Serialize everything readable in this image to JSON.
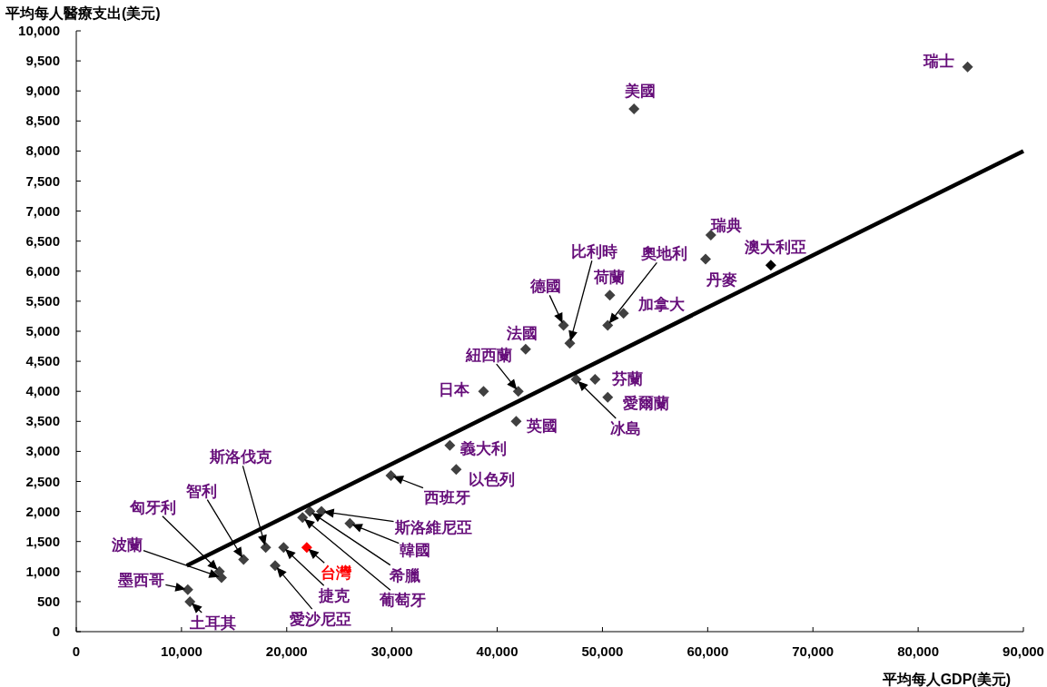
{
  "chart_data": {
    "type": "scatter",
    "ylabel": "平均每人醫療支出(美元)",
    "xlabel": "平均每人GDP(美元)",
    "xlim": [
      0,
      90000
    ],
    "ylim": [
      0,
      10000
    ],
    "xticks": [
      0,
      {
        "value": 10000,
        "label": "10,000"
      },
      {
        "value": 20000,
        "label": "20,000"
      },
      {
        "value": 30000,
        "label": "30,000"
      },
      {
        "value": 40000,
        "label": "40,000"
      },
      {
        "value": 50000,
        "label": "50,000"
      },
      {
        "value": 60000,
        "label": "60,000"
      },
      {
        "value": 70000,
        "label": "70,000"
      },
      {
        "value": 80000,
        "label": "80,000"
      },
      {
        "value": 90000,
        "label": "90,000"
      }
    ],
    "yticks": [
      0,
      500,
      {
        "value": 1000,
        "label": "1,000"
      },
      {
        "value": 1500,
        "label": "1,500"
      },
      {
        "value": 2000,
        "label": "2,000"
      },
      {
        "value": 2500,
        "label": "2,500"
      },
      {
        "value": 3000,
        "label": "3,000"
      },
      {
        "value": 3500,
        "label": "3,500"
      },
      {
        "value": 4000,
        "label": "4,000"
      },
      {
        "value": 4500,
        "label": "4,500"
      },
      {
        "value": 5000,
        "label": "5,000"
      },
      {
        "value": 5500,
        "label": "5,500"
      },
      {
        "value": 6000,
        "label": "6,000"
      },
      {
        "value": 6500,
        "label": "6,500"
      },
      {
        "value": 7000,
        "label": "7,000"
      },
      {
        "value": 7500,
        "label": "7,500"
      },
      {
        "value": 8000,
        "label": "8,000"
      },
      {
        "value": 8500,
        "label": "8,500"
      },
      {
        "value": 9000,
        "label": "9,000"
      },
      {
        "value": 9500,
        "label": "9,500"
      },
      {
        "value": 10000,
        "label": "10,000"
      }
    ],
    "series": [
      {
        "type": "scatter",
        "color": "#404040",
        "marker": "diamond",
        "x": [
          84700,
          53000,
          60300,
          59800,
          66000,
          50700,
          52000,
          50500,
          46300,
          46900,
          42700,
          42000,
          38700,
          47500,
          49300,
          50500,
          41800,
          35500,
          36100,
          29900,
          23300,
          26000,
          22200,
          21500,
          21900,
          19700,
          18000,
          18900,
          15900,
          13600,
          13800,
          10600,
          10800
        ],
        "values": [
          9400,
          8700,
          6600,
          6200,
          6100,
          5600,
          5300,
          5100,
          5100,
          4800,
          4700,
          4000,
          4000,
          4200,
          4200,
          3900,
          3500,
          3100,
          2700,
          2600,
          2000,
          1800,
          2000,
          1900,
          1400,
          1400,
          1400,
          1100,
          1200,
          1000,
          900,
          700,
          500
        ],
        "colors": [
          "#404040",
          "#404040",
          "#404040",
          "#404040",
          "#000000",
          "#404040",
          "#404040",
          "#404040",
          "#404040",
          "#404040",
          "#404040",
          "#404040",
          "#404040",
          "#404040",
          "#404040",
          "#404040",
          "#404040",
          "#404040",
          "#404040",
          "#404040",
          "#404040",
          "#404040",
          "#404040",
          "#404040",
          "#ff0000",
          "#404040",
          "#404040",
          "#404040",
          "#404040",
          "#404040",
          "#404040",
          "#404040",
          "#404040"
        ]
      },
      {
        "type": "line",
        "color": "#000000",
        "x": [
          10500,
          90000
        ],
        "values": [
          1100,
          8000
        ]
      }
    ],
    "annotations": [
      {
        "text": "瑞士",
        "x": 84700,
        "y": 9400
      },
      {
        "text": "美國",
        "x": 53000,
        "y": 8700
      },
      {
        "text": "瑞典",
        "x": 60300,
        "y": 6600
      },
      {
        "text": "丹麥",
        "x": 59800,
        "y": 6200
      },
      {
        "text": "澳大利亞",
        "x": 66000,
        "y": 6100
      },
      {
        "text": "荷蘭",
        "x": 50700,
        "y": 5600
      },
      {
        "text": "加拿大",
        "x": 52000,
        "y": 5300
      },
      "奧地利",
      {
        "text": "德國",
        "x": 46300,
        "y": 5100
      },
      "比利時",
      {
        "text": "法國",
        "x": 42700,
        "y": 4700
      },
      {
        "text": "紐西蘭",
        "x": 42000,
        "y": 4000
      },
      {
        "text": "日本",
        "x": 38700,
        "y": 4000
      },
      "冰島",
      {
        "text": "芬蘭",
        "x": 49300,
        "y": 4200
      },
      {
        "text": "愛爾蘭",
        "x": 50500,
        "y": 3900
      },
      {
        "text": "英國",
        "x": 41800,
        "y": 3500
      },
      {
        "text": "義大利",
        "x": 35500,
        "y": 3100
      },
      {
        "text": "以色列",
        "x": 36100,
        "y": 2700
      },
      {
        "text": "西班牙",
        "x": 29900,
        "y": 2600
      },
      "斯洛維尼亞",
      "韓國",
      "希臘",
      "葡萄牙",
      {
        "text": "台灣",
        "x": 21900,
        "y": 1400
      },
      "捷克",
      "斯洛伐克",
      "愛沙尼亞",
      "智利",
      "匈牙利",
      "波蘭",
      {
        "text": "墨西哥",
        "x": 10600,
        "y": 700
      },
      {
        "text": "土耳其",
        "x": 10800,
        "y": 500
      }
    ]
  }
}
